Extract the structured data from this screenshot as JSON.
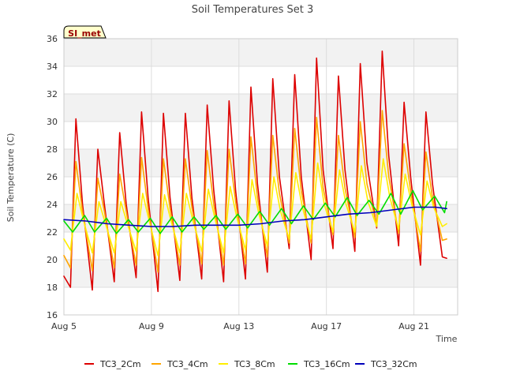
{
  "chart_data": {
    "type": "line",
    "title": "Soil Temperatures Set 3",
    "xlabel": "Time",
    "ylabel": "Soil Temperature (C)",
    "badge": "SI_met",
    "xlim": [
      0,
      18
    ],
    "ylim": [
      16,
      36
    ],
    "x_ticks": [
      {
        "x": 0,
        "label": "Aug 5"
      },
      {
        "x": 4,
        "label": "Aug 9"
      },
      {
        "x": 8,
        "label": "Aug 13"
      },
      {
        "x": 12,
        "label": "Aug 17"
      },
      {
        "x": 16,
        "label": "Aug 21"
      }
    ],
    "y_ticks": [
      16,
      18,
      20,
      22,
      24,
      26,
      28,
      30,
      32,
      34,
      36
    ],
    "grid": true,
    "legend_position": "bottom",
    "series": [
      {
        "name": "TC3_2Cm",
        "color": "#dd0000",
        "x": [
          0.0,
          0.3,
          0.55,
          0.85,
          1.3,
          1.55,
          1.85,
          2.3,
          2.55,
          2.85,
          3.3,
          3.55,
          3.85,
          4.3,
          4.55,
          4.85,
          5.3,
          5.55,
          5.85,
          6.3,
          6.55,
          6.85,
          7.3,
          7.55,
          7.85,
          8.3,
          8.55,
          8.85,
          9.3,
          9.55,
          9.85,
          10.3,
          10.55,
          10.85,
          11.3,
          11.55,
          11.85,
          12.3,
          12.55,
          12.85,
          13.3,
          13.55,
          13.85,
          14.3,
          14.55,
          14.85,
          15.3,
          15.55,
          15.85,
          16.3,
          16.55,
          16.85,
          17.3,
          17.5
        ],
        "y": [
          18.8,
          18.0,
          30.2,
          24.0,
          17.8,
          28.0,
          24.0,
          18.4,
          29.2,
          24.0,
          18.7,
          30.7,
          24.5,
          17.7,
          30.6,
          24.5,
          18.5,
          30.6,
          24.5,
          18.6,
          31.2,
          25.0,
          18.4,
          31.5,
          25.0,
          18.6,
          32.5,
          25.5,
          19.1,
          33.1,
          26.0,
          20.8,
          33.4,
          26.0,
          20.0,
          34.6,
          26.5,
          20.8,
          33.3,
          26.5,
          20.6,
          34.2,
          27.0,
          22.3,
          35.1,
          27.5,
          21.0,
          31.4,
          26.0,
          19.6,
          30.7,
          25.5,
          20.2,
          20.1
        ]
      },
      {
        "name": "TC3_4Cm",
        "color": "#ffa500",
        "x": [
          0.0,
          0.3,
          0.55,
          0.85,
          1.3,
          1.55,
          1.85,
          2.3,
          2.55,
          2.85,
          3.3,
          3.55,
          3.85,
          4.3,
          4.55,
          4.85,
          5.3,
          5.55,
          5.85,
          6.3,
          6.55,
          6.85,
          7.3,
          7.55,
          7.85,
          8.3,
          8.55,
          8.85,
          9.3,
          9.55,
          9.85,
          10.3,
          10.55,
          10.85,
          11.3,
          11.55,
          11.85,
          12.3,
          12.55,
          12.85,
          13.3,
          13.55,
          13.85,
          14.3,
          14.55,
          14.85,
          15.3,
          15.55,
          15.85,
          16.3,
          16.55,
          16.85,
          17.3,
          17.5
        ],
        "y": [
          20.3,
          19.4,
          27.1,
          23.5,
          19.2,
          25.9,
          23.5,
          19.4,
          26.2,
          23.5,
          19.6,
          27.4,
          23.7,
          19.1,
          27.3,
          23.7,
          19.6,
          27.3,
          23.8,
          19.7,
          27.9,
          24.0,
          19.6,
          28.0,
          24.2,
          19.7,
          28.9,
          24.5,
          20.2,
          29.0,
          24.8,
          21.2,
          29.5,
          25.0,
          21.2,
          30.3,
          25.2,
          21.8,
          29.0,
          25.2,
          21.6,
          30.0,
          25.5,
          22.5,
          30.8,
          26.0,
          21.9,
          28.4,
          25.0,
          20.6,
          27.8,
          24.5,
          21.4,
          21.5
        ]
      },
      {
        "name": "TC3_8Cm",
        "color": "#ffee00",
        "x": [
          0.0,
          0.3,
          0.6,
          0.9,
          1.3,
          1.6,
          1.9,
          2.3,
          2.6,
          2.9,
          3.3,
          3.6,
          3.9,
          4.3,
          4.6,
          4.9,
          5.3,
          5.6,
          5.9,
          6.3,
          6.6,
          6.9,
          7.3,
          7.6,
          7.9,
          8.3,
          8.6,
          8.9,
          9.3,
          9.6,
          9.9,
          10.3,
          10.6,
          10.9,
          11.3,
          11.6,
          11.9,
          12.3,
          12.6,
          12.9,
          13.3,
          13.6,
          13.9,
          14.3,
          14.6,
          14.9,
          15.3,
          15.6,
          15.9,
          16.3,
          16.6,
          16.9,
          17.3,
          17.5
        ],
        "y": [
          21.5,
          20.7,
          24.8,
          22.8,
          20.5,
          24.2,
          22.6,
          20.5,
          24.2,
          22.6,
          20.6,
          24.8,
          22.8,
          20.3,
          24.7,
          22.8,
          20.5,
          24.8,
          22.8,
          20.6,
          25.1,
          23.0,
          20.5,
          25.3,
          23.1,
          20.7,
          25.8,
          23.4,
          21.0,
          26.0,
          23.5,
          21.5,
          26.3,
          23.8,
          21.5,
          27.0,
          24.0,
          22.0,
          26.5,
          24.0,
          22.0,
          26.8,
          24.2,
          22.4,
          27.3,
          24.5,
          22.2,
          26.2,
          24.0,
          21.8,
          25.7,
          23.8,
          22.4,
          22.6
        ]
      },
      {
        "name": "TC3_16Cm",
        "color": "#00dd00",
        "x": [
          0.0,
          0.4,
          0.95,
          1.4,
          1.95,
          2.4,
          2.95,
          3.4,
          3.95,
          4.4,
          4.95,
          5.4,
          5.95,
          6.4,
          6.95,
          7.4,
          7.95,
          8.4,
          8.95,
          9.4,
          9.95,
          10.4,
          10.95,
          11.4,
          11.95,
          12.4,
          12.95,
          13.4,
          13.95,
          14.4,
          14.95,
          15.4,
          15.95,
          16.4,
          16.95,
          17.4,
          17.5
        ],
        "y": [
          22.8,
          22.0,
          23.2,
          22.0,
          23.0,
          21.9,
          22.9,
          22.0,
          23.0,
          21.9,
          23.1,
          22.0,
          23.1,
          22.2,
          23.2,
          22.2,
          23.3,
          22.3,
          23.5,
          22.5,
          23.7,
          22.6,
          23.9,
          22.9,
          24.1,
          23.1,
          24.5,
          23.2,
          24.3,
          23.3,
          24.8,
          23.3,
          25.0,
          23.6,
          24.6,
          23.4,
          24.2
        ]
      },
      {
        "name": "TC3_32Cm",
        "color": "#0000bb",
        "x": [
          0.0,
          1.0,
          2.0,
          3.0,
          4.0,
          5.0,
          6.0,
          7.0,
          8.0,
          9.0,
          10.0,
          11.0,
          12.0,
          13.0,
          14.0,
          15.0,
          16.0,
          17.0,
          17.5
        ],
        "y": [
          22.9,
          22.8,
          22.6,
          22.5,
          22.4,
          22.4,
          22.5,
          22.5,
          22.5,
          22.6,
          22.8,
          22.9,
          23.1,
          23.3,
          23.4,
          23.6,
          23.8,
          23.8,
          23.7
        ]
      }
    ]
  }
}
